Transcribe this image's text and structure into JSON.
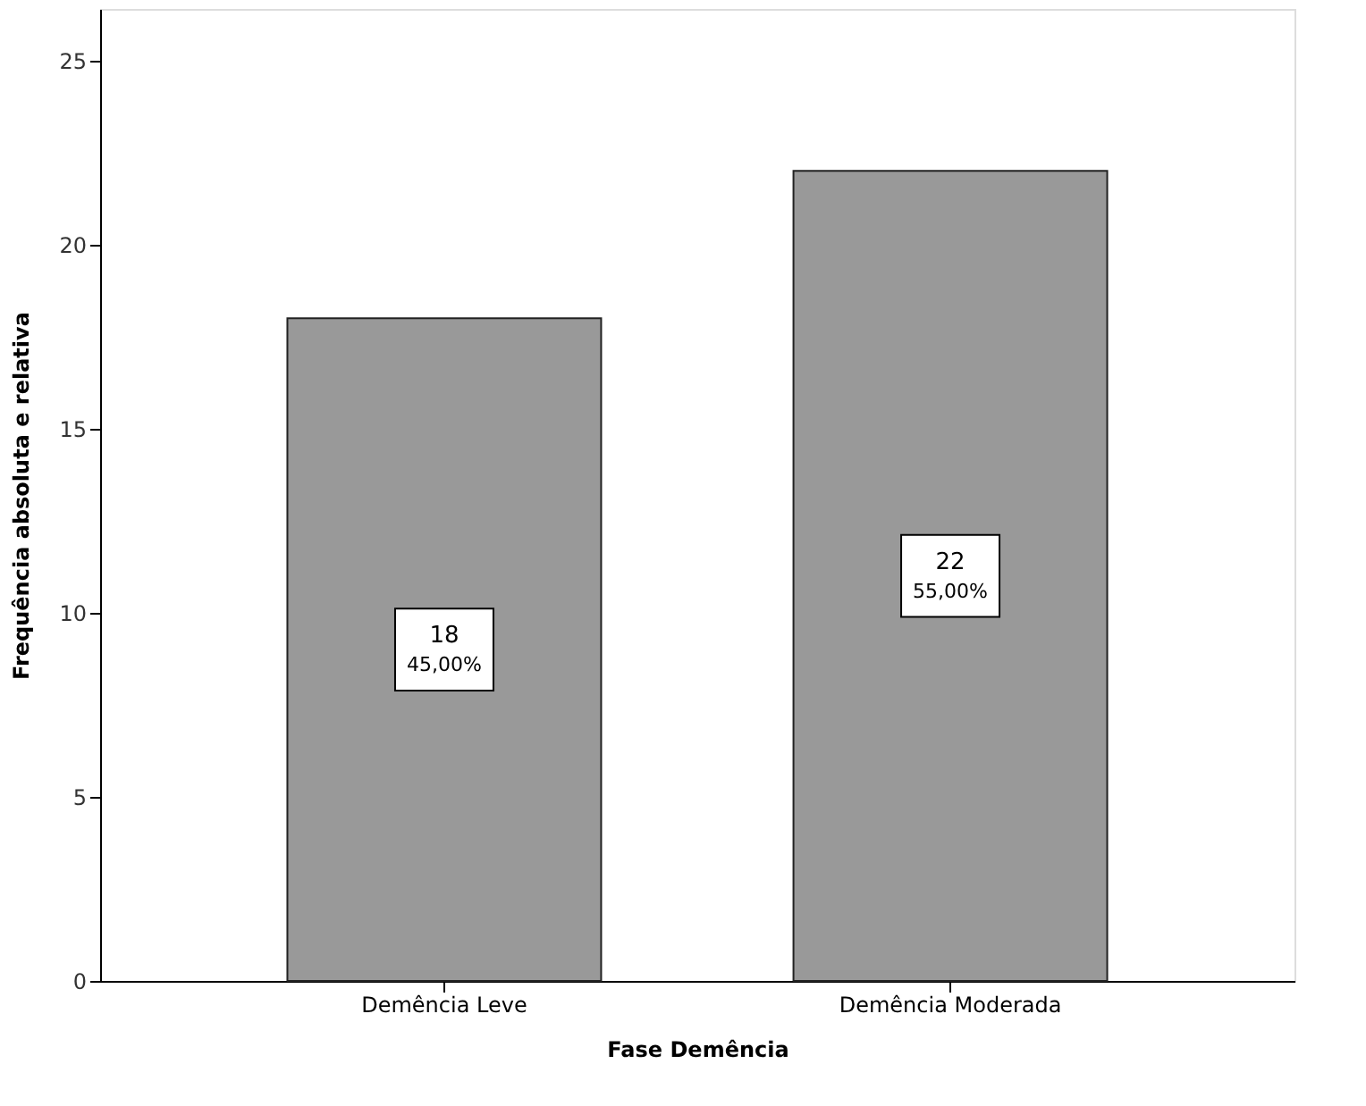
{
  "chart_data": {
    "type": "bar",
    "xlabel": "Fase Demência",
    "ylabel": "Frequência absoluta e relativa",
    "categories": [
      "Demência Leve",
      "Demência Moderada"
    ],
    "values": [
      18,
      22
    ],
    "color": "#999999",
    "value_labels": [
      "18\n45,00%",
      "22\n55,00%"
    ],
    "ylim": [
      0,
      26.4
    ],
    "yticks": [
      0,
      5,
      10,
      15,
      20,
      25
    ],
    "grid": false
  }
}
